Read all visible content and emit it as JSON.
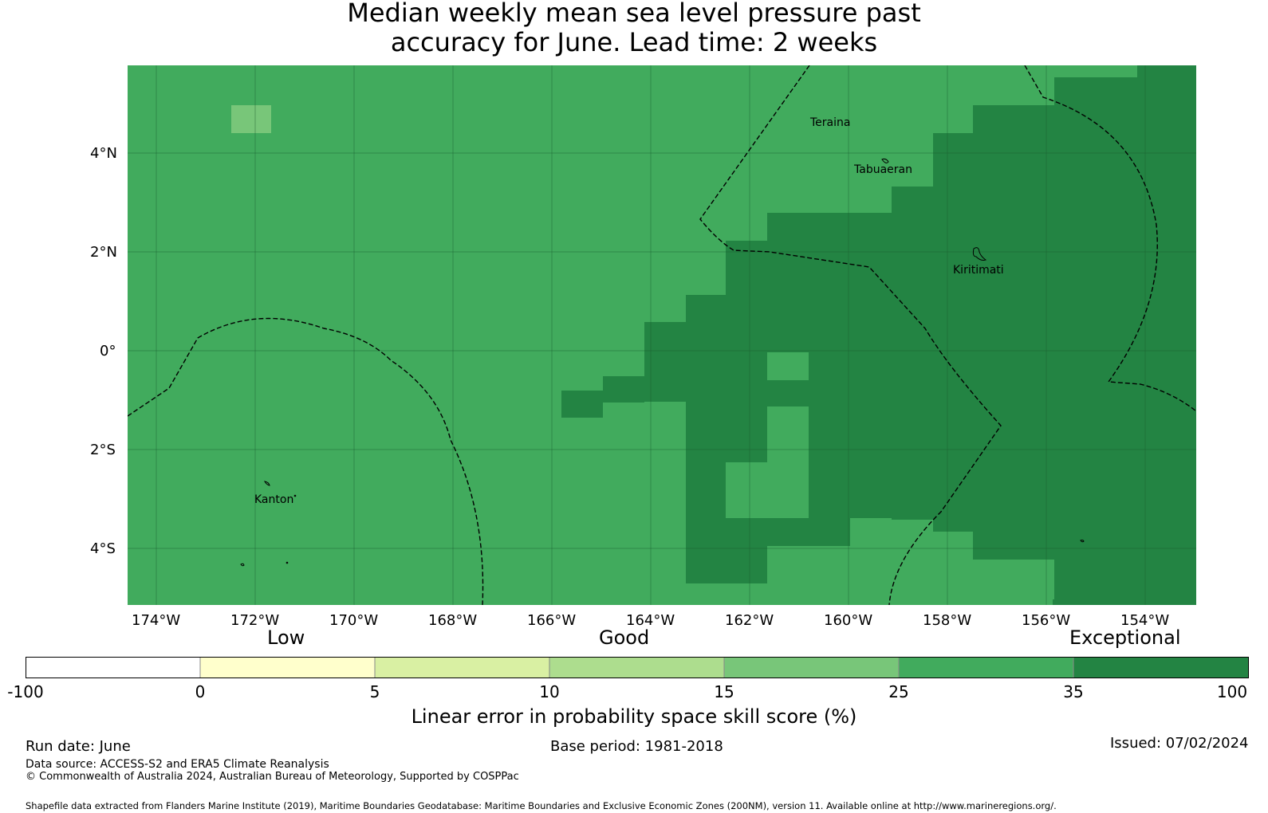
{
  "title_line1": "Median weekly mean sea level pressure past",
  "title_line2": "accuracy for June. Lead time: 2 weeks",
  "colors": {
    "good": "#41ab5d",
    "exceptional": "#238443",
    "cat_15_25": "#78c679",
    "cat_10_15": "#addd8e",
    "cat_5_10": "#d9f0a3",
    "cat_0_5": "#ffffcc",
    "cat_neg": "#ffffff"
  },
  "map": {
    "lon_labels": [
      "174°W",
      "172°W",
      "170°W",
      "168°W",
      "166°W",
      "164°W",
      "162°W",
      "160°W",
      "158°W",
      "156°W",
      "154°W"
    ],
    "lat_labels": [
      "4°N",
      "2°N",
      "0°",
      "2°S",
      "4°S"
    ],
    "places": [
      {
        "name": "Teraina",
        "lon": -160.75,
        "lat": 4.6
      },
      {
        "name": "Tabuaeran",
        "lon": -159.35,
        "lat": 3.65
      },
      {
        "name": "Kiritimati",
        "lon": -157.45,
        "lat": 1.6
      },
      {
        "name": "Kanton",
        "lon": -171.7,
        "lat": -3.05
      }
    ]
  },
  "colorbar": {
    "categories": [
      "Low",
      "Good",
      "Exceptional"
    ],
    "ticks": [
      "-100",
      "0",
      "5",
      "10",
      "15",
      "25",
      "35",
      "100"
    ],
    "label": "Linear error in probability space skill score (%)"
  },
  "footer": {
    "run_date": "Run date: June",
    "base_period": "Base period: 1981-2018",
    "issued": "Issued: 07/02/2024",
    "data_source": "Data source: ACCESS-S2 and ERA5 Climate Reanalysis",
    "copyright": "© Commonwealth of Australia 2024, Australian Bureau of Meteorology, Supported by COSPPac",
    "shapefile": "Shapefile data extracted from Flanders Marine Institute (2019), Maritime Boundaries Geodatabase: Maritime Boundaries and Exclusive Economic Zones (200NM), version 11. Available online at http://www.marineregions.org/."
  }
}
